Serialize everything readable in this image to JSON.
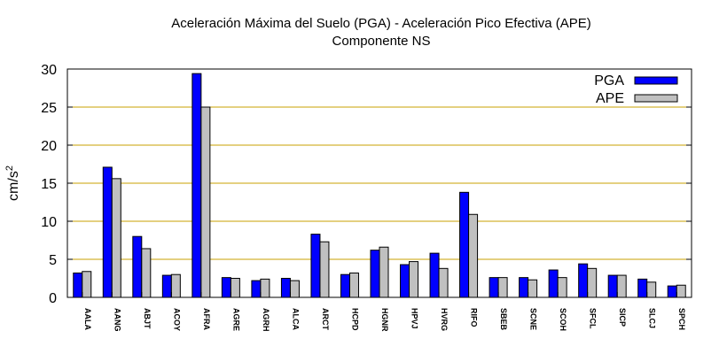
{
  "chart_data": {
    "type": "bar",
    "title": "Aceleración Máxima del Suelo (PGA) -  Aceleración Pico Efectiva (APE)",
    "subtitle": "Componente NS",
    "xlabel": "",
    "ylabel_base": "cm/s",
    "ylabel_exp": "2",
    "ylim": [
      0,
      30
    ],
    "yticks": [
      0,
      5,
      10,
      15,
      20,
      25,
      30
    ],
    "grid": "horizontal",
    "legend_position": "top-right",
    "categories": [
      "AALA",
      "AANG",
      "ABJT",
      "ACOY",
      "AFRA",
      "AGRE",
      "AGRH",
      "ALCA",
      "ARCT",
      "HCPD",
      "HGNR",
      "HPVJ",
      "HVRG",
      "RIFO",
      "SBEB",
      "SCNE",
      "SCOH",
      "SFCL",
      "SICP",
      "SLCJ",
      "SPCH"
    ],
    "series": [
      {
        "name": "PGA",
        "color": "#0000ff",
        "values": [
          3.2,
          17.1,
          8.0,
          2.9,
          29.4,
          2.6,
          2.2,
          2.5,
          8.3,
          3.0,
          6.2,
          4.3,
          5.8,
          13.8,
          2.6,
          2.6,
          3.6,
          4.4,
          2.9,
          2.4,
          1.5
        ]
      },
      {
        "name": "APE",
        "color": "#c0c0c0",
        "values": [
          3.4,
          15.6,
          6.4,
          3.0,
          25.0,
          2.5,
          2.4,
          2.2,
          7.3,
          3.2,
          6.6,
          4.7,
          3.8,
          10.9,
          2.6,
          2.3,
          2.6,
          3.8,
          2.9,
          2.0,
          1.6
        ]
      }
    ],
    "colors": {
      "grid": "#c8a000",
      "axis": "#000000"
    }
  }
}
